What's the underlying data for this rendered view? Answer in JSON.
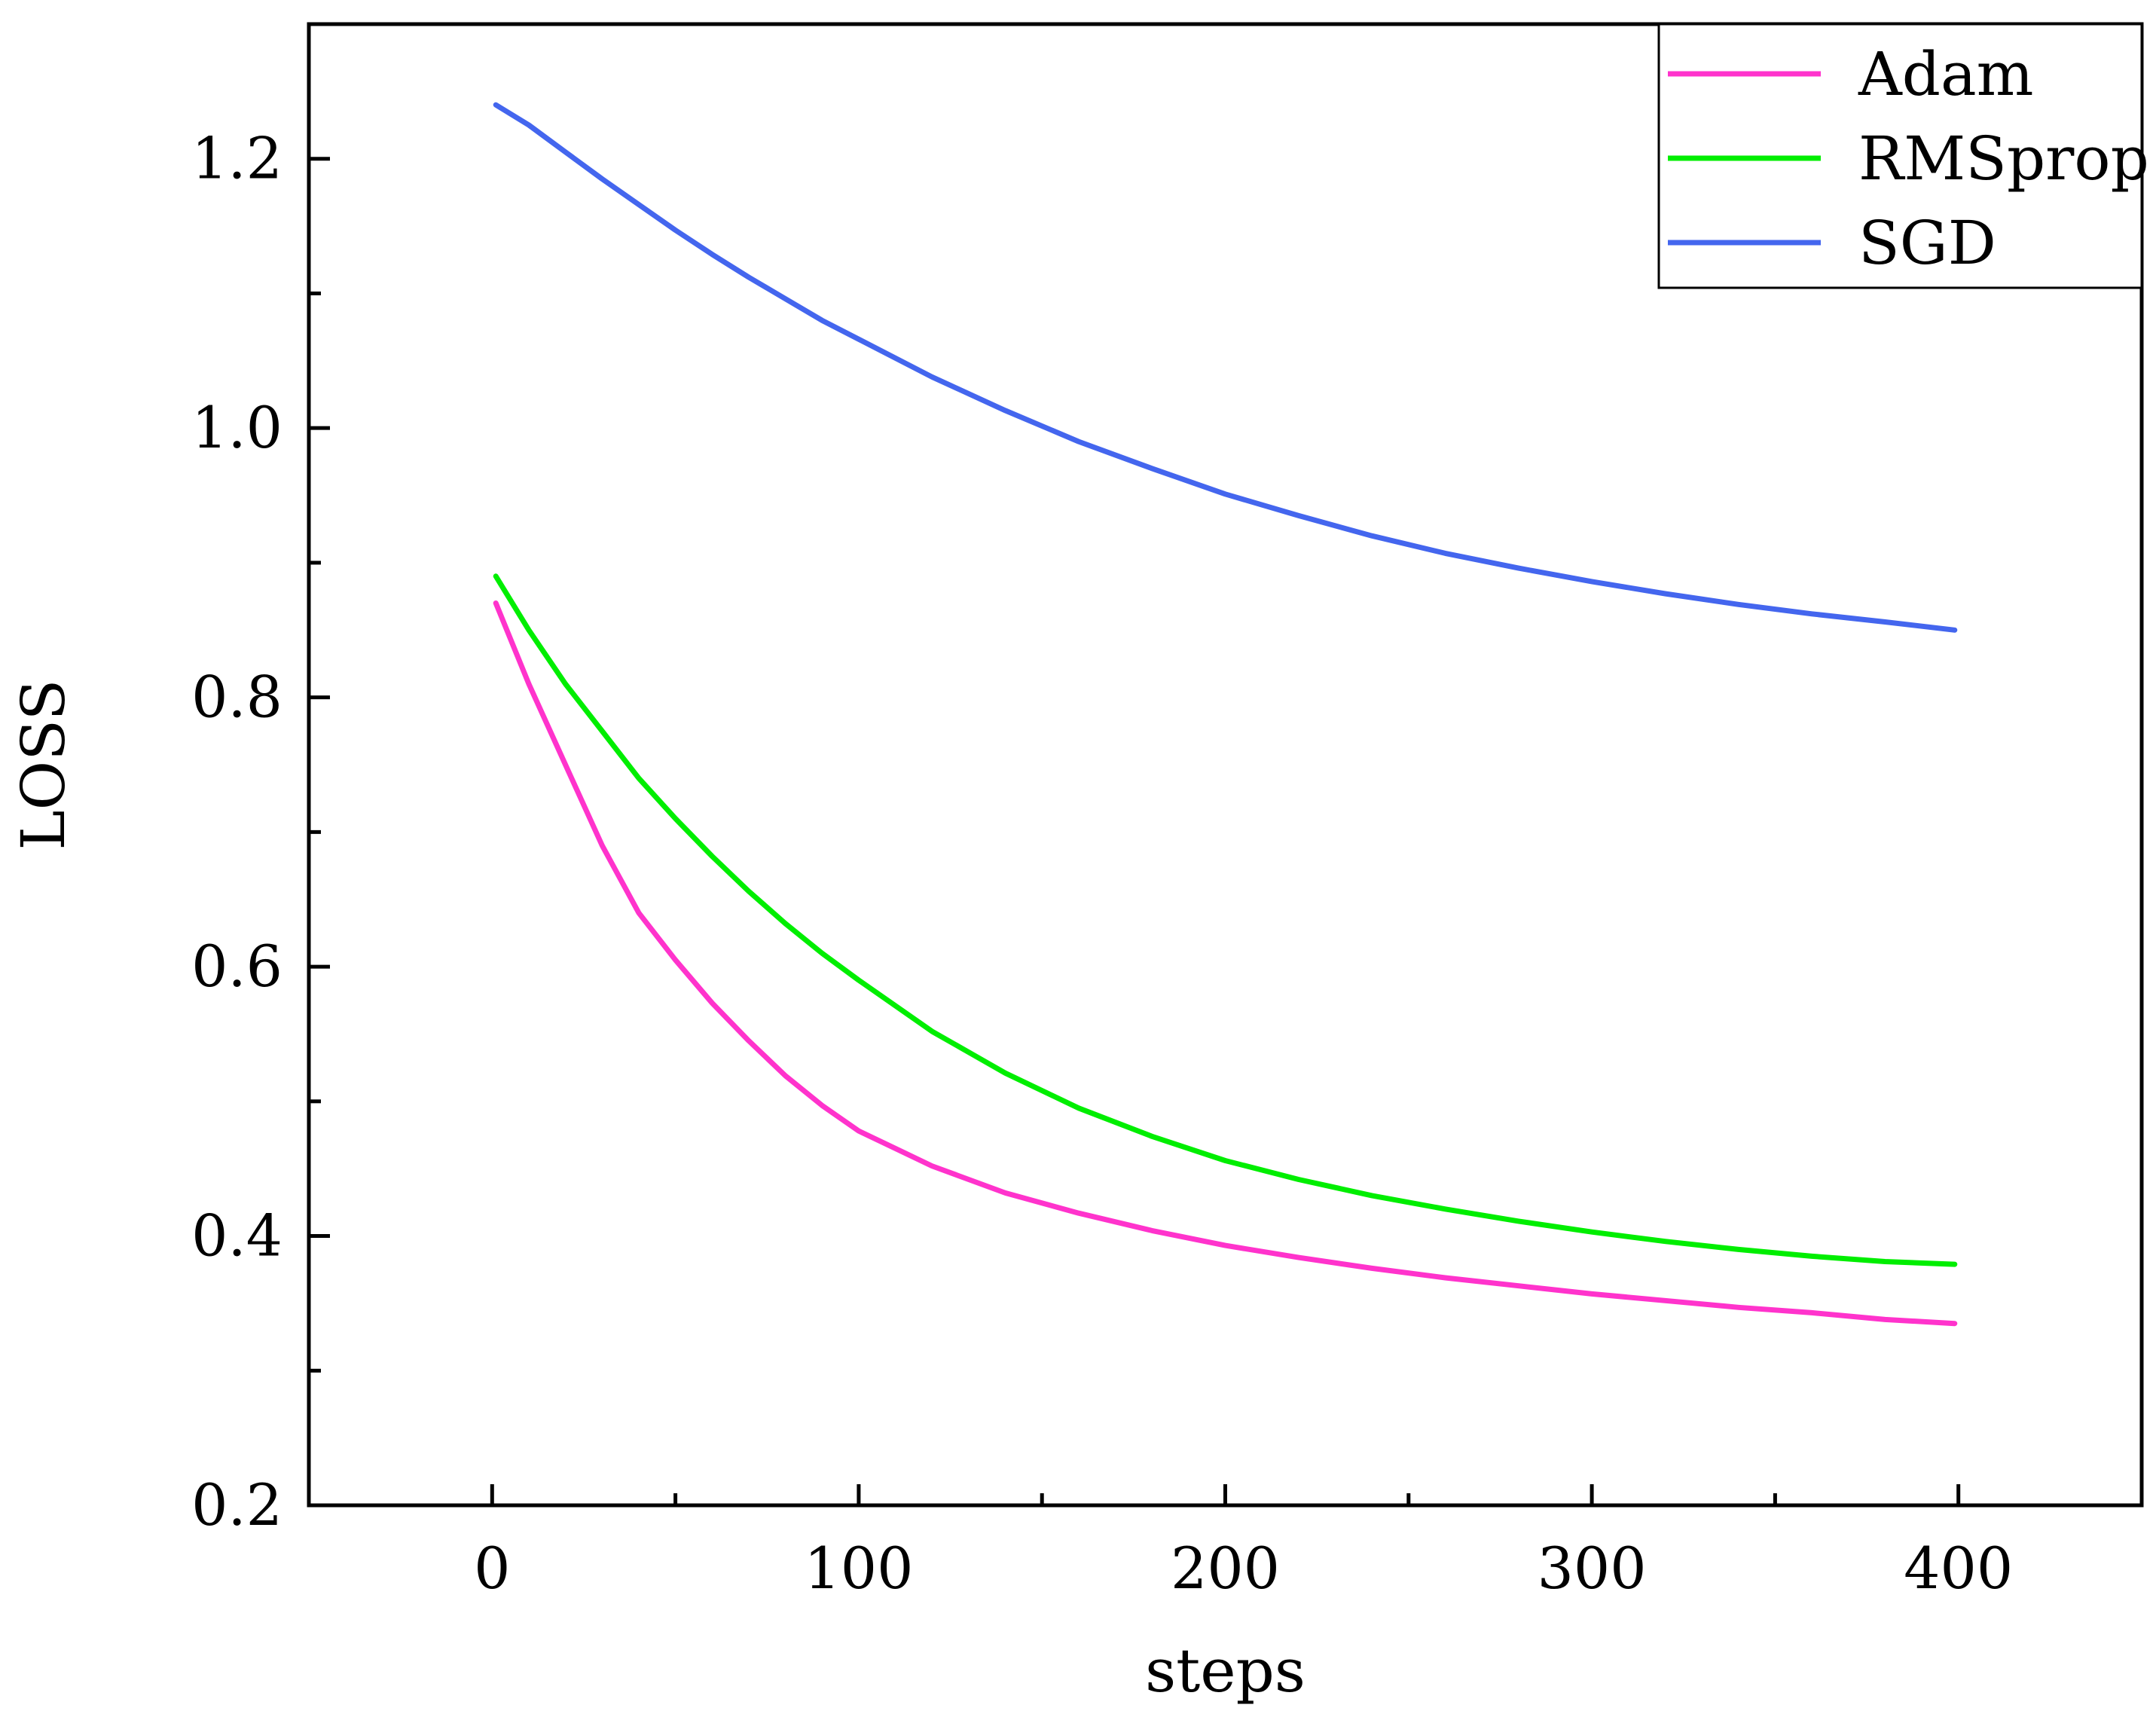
{
  "chart_data": {
    "type": "line",
    "title": "",
    "xlabel": "steps",
    "ylabel": "LOSS",
    "xlim": [
      -50,
      450
    ],
    "ylim": [
      0.2,
      1.3
    ],
    "xticks": [
      0,
      100,
      200,
      300,
      400
    ],
    "xtick_labels": [
      "0",
      "100",
      "200",
      "300",
      "400"
    ],
    "xminor": [
      50,
      150,
      250,
      350
    ],
    "yticks": [
      0.2,
      0.4,
      0.6,
      0.8,
      1.0,
      1.2
    ],
    "ytick_labels": [
      "0.2",
      "0.4",
      "0.6",
      "0.8",
      "1.0",
      "1.2"
    ],
    "yminor": [
      0.3,
      0.5,
      0.7,
      0.9,
      1.1
    ],
    "grid": false,
    "legend_position": "top-right",
    "x": [
      1,
      10,
      20,
      30,
      40,
      50,
      60,
      70,
      80,
      90,
      100,
      120,
      140,
      160,
      180,
      200,
      220,
      240,
      260,
      280,
      300,
      320,
      340,
      360,
      380,
      399
    ],
    "series": [
      {
        "name": "Adam",
        "color": "#ff33cc",
        "values": [
          0.87,
          0.81,
          0.75,
          0.69,
          0.64,
          0.605,
          0.573,
          0.545,
          0.519,
          0.497,
          0.478,
          0.452,
          0.432,
          0.417,
          0.404,
          0.393,
          0.384,
          0.376,
          0.369,
          0.363,
          0.357,
          0.352,
          0.347,
          0.343,
          0.338,
          0.335
        ]
      },
      {
        "name": "RMSprop",
        "color": "#00ee00",
        "values": [
          0.89,
          0.85,
          0.81,
          0.775,
          0.74,
          0.71,
          0.682,
          0.656,
          0.632,
          0.61,
          0.59,
          0.552,
          0.521,
          0.495,
          0.474,
          0.456,
          0.442,
          0.43,
          0.42,
          0.411,
          0.403,
          0.396,
          0.39,
          0.385,
          0.381,
          0.379
        ]
      },
      {
        "name": "SGD",
        "color": "#4466ee",
        "values": [
          1.24,
          1.225,
          1.205,
          1.185,
          1.166,
          1.147,
          1.129,
          1.112,
          1.096,
          1.08,
          1.066,
          1.038,
          1.013,
          0.99,
          0.97,
          0.951,
          0.935,
          0.92,
          0.907,
          0.896,
          0.886,
          0.877,
          0.869,
          0.862,
          0.856,
          0.85
        ]
      }
    ]
  }
}
